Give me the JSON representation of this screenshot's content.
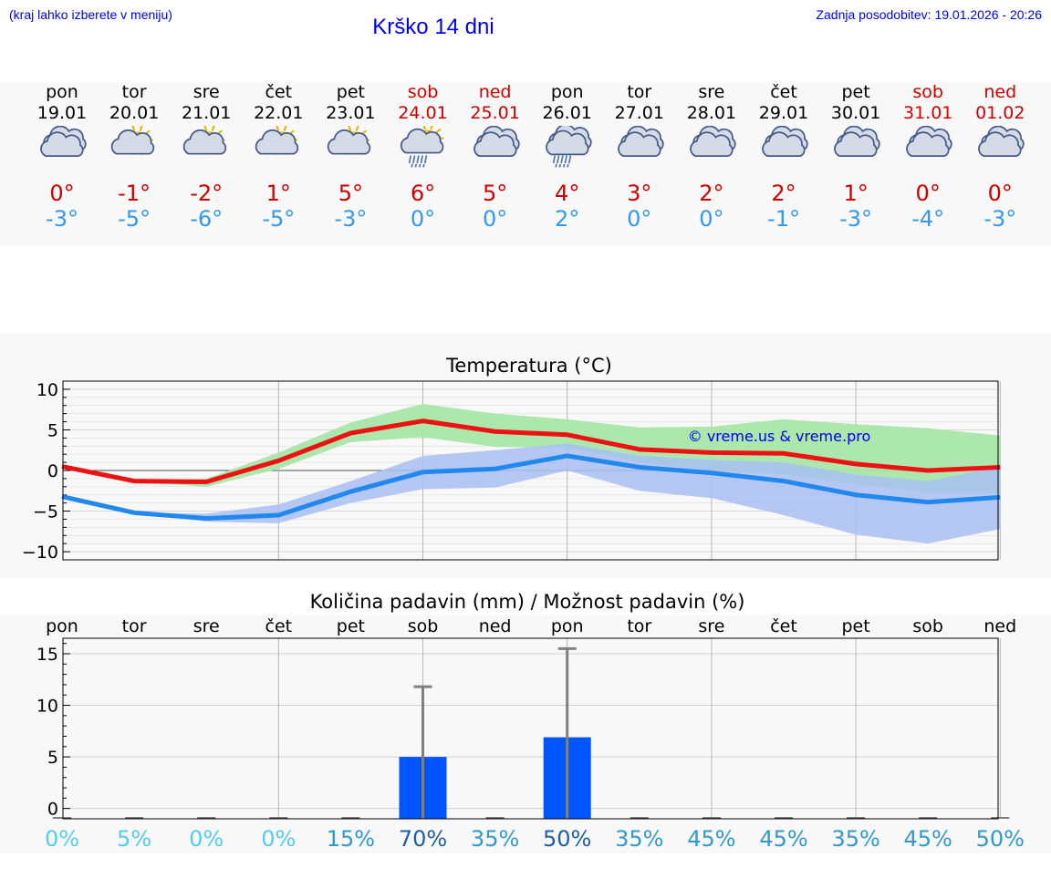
{
  "header": {
    "hint": "(kraj lahko izberete v meniju)",
    "title": "Krško 14 dni",
    "updated": "Zadnja posodobitev: 19.01.2026 - 20:26"
  },
  "days": [
    {
      "name": "pon",
      "date": "19.01",
      "weekend": false,
      "icon": "cloudy-icon",
      "tmax": "0°",
      "tmin": "-3°"
    },
    {
      "name": "tor",
      "date": "20.01",
      "weekend": false,
      "icon": "partly-sunny-icon",
      "tmax": "-1°",
      "tmin": "-5°"
    },
    {
      "name": "sre",
      "date": "21.01",
      "weekend": false,
      "icon": "partly-sunny-icon",
      "tmax": "-2°",
      "tmin": "-6°"
    },
    {
      "name": "čet",
      "date": "22.01",
      "weekend": false,
      "icon": "partly-sunny-icon",
      "tmax": "1°",
      "tmin": "-5°"
    },
    {
      "name": "pet",
      "date": "23.01",
      "weekend": false,
      "icon": "partly-sunny-icon",
      "tmax": "5°",
      "tmin": "-3°"
    },
    {
      "name": "sob",
      "date": "24.01",
      "weekend": true,
      "icon": "sun-cloud-rain-icon",
      "tmax": "6°",
      "tmin": "0°"
    },
    {
      "name": "ned",
      "date": "25.01",
      "weekend": true,
      "icon": "cloudy-icon",
      "tmax": "5°",
      "tmin": "0°"
    },
    {
      "name": "pon",
      "date": "26.01",
      "weekend": false,
      "icon": "cloud-rain-icon",
      "tmax": "4°",
      "tmin": "2°"
    },
    {
      "name": "tor",
      "date": "27.01",
      "weekend": false,
      "icon": "cloudy-icon",
      "tmax": "3°",
      "tmin": "0°"
    },
    {
      "name": "sre",
      "date": "28.01",
      "weekend": false,
      "icon": "cloudy-icon",
      "tmax": "2°",
      "tmin": "0°"
    },
    {
      "name": "čet",
      "date": "29.01",
      "weekend": false,
      "icon": "cloudy-icon",
      "tmax": "2°",
      "tmin": "-1°"
    },
    {
      "name": "pet",
      "date": "30.01",
      "weekend": false,
      "icon": "cloudy-icon",
      "tmax": "1°",
      "tmin": "-3°"
    },
    {
      "name": "sob",
      "date": "31.01",
      "weekend": true,
      "icon": "cloudy-icon",
      "tmax": "0°",
      "tmin": "-4°"
    },
    {
      "name": "ned",
      "date": "01.02",
      "weekend": true,
      "icon": "cloudy-icon",
      "tmax": "0°",
      "tmin": "-3°"
    }
  ],
  "colors": {
    "max": "#ee1111",
    "min": "#2288ee",
    "maxBand": "#a8e6a8",
    "minBand": "#a8c0f2",
    "overlap": "#78c09a",
    "bar": "#0055ff",
    "error": "#808080"
  },
  "chart_data": [
    {
      "type": "line",
      "title": "Temperatura (°C)",
      "watermark": "© vreme.us & vreme.pro",
      "ylim": [
        -11,
        11
      ],
      "yticks": [
        10,
        5,
        0,
        -5,
        -10
      ],
      "ytick_labels": [
        "10",
        "5",
        "0",
        "−5",
        "−10"
      ],
      "x": [
        0,
        1,
        2,
        3,
        4,
        5,
        6,
        7,
        8,
        9,
        10,
        11,
        12,
        13
      ],
      "series": [
        {
          "name": "max",
          "values": [
            0.5,
            -1.3,
            -1.4,
            1.2,
            4.6,
            6.1,
            4.8,
            4.4,
            2.6,
            2.2,
            2.1,
            0.8,
            0.0,
            0.4
          ],
          "band_low": [
            0.5,
            -1.3,
            -2.0,
            0.2,
            3.5,
            4.1,
            2.9,
            2.8,
            1.0,
            0.0,
            -0.5,
            -1.7,
            -2.7,
            -2.8
          ],
          "band_high": [
            0.5,
            -1.3,
            -1.0,
            2.2,
            5.9,
            8.2,
            7.0,
            6.3,
            5.3,
            5.4,
            6.3,
            5.7,
            5.2,
            4.3
          ]
        },
        {
          "name": "min",
          "values": [
            -3.2,
            -5.2,
            -5.9,
            -5.5,
            -2.6,
            -0.2,
            0.2,
            1.8,
            0.4,
            -0.3,
            -1.3,
            -3.0,
            -3.9,
            -3.3
          ],
          "band_low": [
            -3.5,
            -5.2,
            -6.3,
            -6.5,
            -4.0,
            -2.3,
            -2.1,
            0.0,
            -2.5,
            -3.4,
            -5.5,
            -7.9,
            -9.0,
            -7.2
          ],
          "band_high": [
            -3.0,
            -5.2,
            -5.3,
            -4.2,
            -1.3,
            1.8,
            2.5,
            3.3,
            1.8,
            1.3,
            1.0,
            -0.5,
            -1.3,
            0.5
          ]
        }
      ]
    },
    {
      "type": "bar",
      "title": "Količina padavin (mm) / Možnost padavin (%)",
      "day_labels": [
        "pon",
        "tor",
        "sre",
        "čet",
        "pet",
        "sob",
        "ned",
        "pon",
        "tor",
        "sre",
        "čet",
        "pet",
        "sob",
        "ned"
      ],
      "ylim": [
        -1,
        16.5
      ],
      "yticks": [
        15,
        10,
        5,
        0
      ],
      "ytick_labels": [
        "15",
        "10",
        "5",
        "0"
      ],
      "values": [
        0,
        0,
        0,
        0,
        0,
        5.0,
        0,
        6.9,
        0,
        0,
        0,
        0,
        0,
        0
      ],
      "error_high": [
        null,
        null,
        null,
        null,
        null,
        11.8,
        null,
        15.5,
        null,
        null,
        null,
        null,
        null,
        null
      ],
      "probability": [
        "0%",
        "5%",
        "0%",
        "0%",
        "15%",
        "70%",
        "35%",
        "50%",
        "35%",
        "45%",
        "45%",
        "35%",
        "45%",
        "50%"
      ],
      "probability_colors": [
        "#55ccee",
        "#55ccee",
        "#55ccee",
        "#55ccee",
        "#3399cc",
        "#1f5fa8",
        "#3399cc",
        "#1f5fa8",
        "#3399cc",
        "#3399cc",
        "#3399cc",
        "#3399cc",
        "#3399cc",
        "#3399cc"
      ]
    }
  ]
}
